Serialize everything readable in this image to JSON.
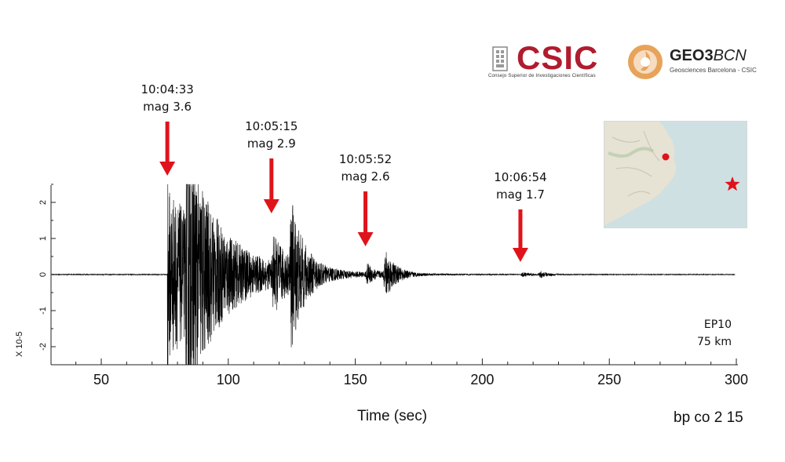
{
  "logos": {
    "csic_name": "CSIC",
    "csic_subtitle": "Consejo Superior de Investigaciones Científicas",
    "geo_name_bold": "GEO3",
    "geo_name_italic": "BCN",
    "geo_subtitle": "Geosciences Barcelona - CSIC",
    "csic_color": "#b01c2e",
    "geo_icon_color": "#e8a35a"
  },
  "colors": {
    "arrow": "#e0131b",
    "trace": "#000000",
    "map_sea": "#cfe0e3",
    "map_land": "#e6e2d4",
    "epicenter_marker": "#e0131b"
  },
  "map": {
    "station_marker_icon": "red-dot",
    "epicenter_icon": "star-icon"
  },
  "chart_data": {
    "type": "line",
    "title": "",
    "xlabel": "Time (sec)",
    "ylabel": "X 10-5",
    "xlim": [
      30,
      300
    ],
    "ylim": [
      -2.5,
      2.5
    ],
    "xticks": [
      50,
      100,
      150,
      200,
      250,
      300
    ],
    "yticks": [
      -2,
      -1,
      0,
      1,
      2
    ],
    "grid": false,
    "station": "EP10",
    "distance": "75 km",
    "filter": "bp co 2 15",
    "events": [
      {
        "time": "10:04:33",
        "mag": "mag 3.6",
        "x": 76
      },
      {
        "time": "10:05:15",
        "mag": "mag 2.9",
        "x": 117
      },
      {
        "time": "10:05:52",
        "mag": "mag 2.6",
        "x": 154
      },
      {
        "time": "10:06:54",
        "mag": "mag 1.7",
        "x": 215
      }
    ],
    "bursts": [
      {
        "onset": 76,
        "amp": 2.5,
        "decay": 20,
        "impulse": true
      },
      {
        "onset": 83,
        "amp": 2.5,
        "decay": 9
      },
      {
        "onset": 117,
        "amp": 0.9,
        "decay": 6
      },
      {
        "onset": 124,
        "amp": 2.0,
        "decay": 5
      },
      {
        "onset": 154,
        "amp": 0.35,
        "decay": 3
      },
      {
        "onset": 161,
        "amp": 0.8,
        "decay": 4
      },
      {
        "onset": 215,
        "amp": 0.08,
        "decay": 3
      },
      {
        "onset": 222,
        "amp": 0.12,
        "decay": 3
      }
    ]
  }
}
